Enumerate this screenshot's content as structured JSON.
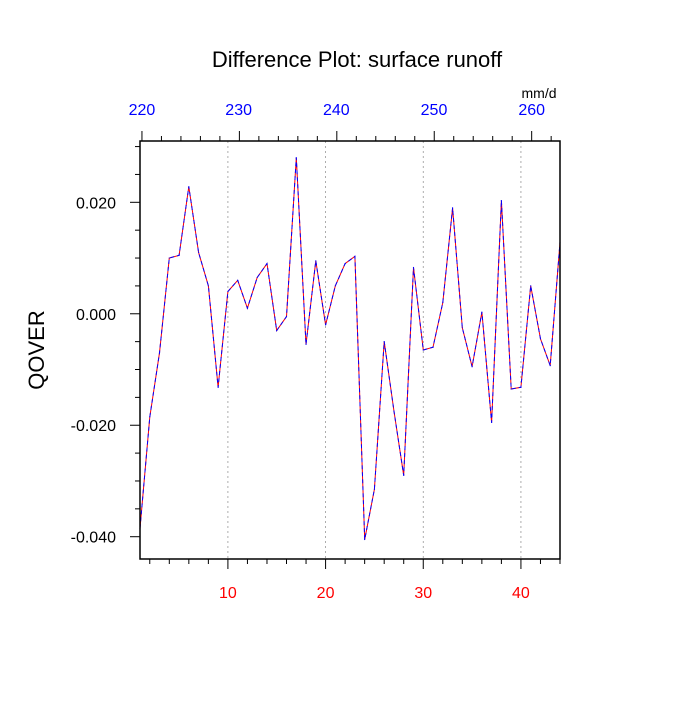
{
  "chart_data": {
    "type": "line",
    "title": "Difference Plot: surface runoff",
    "ylabel": "QOVER",
    "units_label": "mm/d",
    "xlim": [
      1,
      44
    ],
    "ylim": [
      -0.044,
      0.031
    ],
    "top_axis": {
      "ticks": [
        {
          "x": 1.2,
          "label": "220"
        },
        {
          "x": 11.1,
          "label": "230"
        },
        {
          "x": 21.1,
          "label": "240"
        },
        {
          "x": 31.1,
          "label": "250"
        },
        {
          "x": 41.1,
          "label": "260"
        }
      ],
      "color": "#0000ff"
    },
    "bottom_axis": {
      "ticks": [
        {
          "x": 10,
          "label": "10"
        },
        {
          "x": 20,
          "label": "20"
        },
        {
          "x": 30,
          "label": "30"
        },
        {
          "x": 40,
          "label": "40"
        }
      ],
      "color": "#ff0000"
    },
    "left_axis": {
      "ticks": [
        {
          "y": 0.02,
          "label": "0.020"
        },
        {
          "y": 0.0,
          "label": "0.000"
        },
        {
          "y": -0.02,
          "label": "-0.020"
        },
        {
          "y": -0.04,
          "label": "-0.040"
        }
      ]
    },
    "grid": "vertical dotted at major x ticks",
    "series": [
      {
        "style": "dashed",
        "color_a": "#ff0000",
        "color_b": "#0000ff",
        "x": [
          1,
          2,
          3,
          4,
          5,
          6,
          7,
          8,
          9,
          10,
          11,
          12,
          13,
          14,
          15,
          16,
          17,
          18,
          19,
          20,
          21,
          22,
          23,
          24,
          25,
          26,
          27,
          28,
          29,
          30,
          31,
          32,
          33,
          34,
          35,
          36,
          37,
          38,
          39,
          40,
          41,
          42,
          43,
          44
        ],
        "values": [
          -0.0385,
          -0.0185,
          -0.007,
          0.01,
          0.0105,
          0.0228,
          0.011,
          0.005,
          -0.0132,
          0.004,
          0.006,
          0.001,
          0.0065,
          0.009,
          -0.003,
          -0.0005,
          0.028,
          -0.0055,
          0.0095,
          -0.002,
          0.005,
          0.009,
          0.0103,
          -0.0405,
          -0.0315,
          -0.005,
          -0.0175,
          -0.029,
          0.0083,
          -0.0065,
          -0.006,
          0.002,
          0.019,
          -0.0025,
          -0.0095,
          0.0003,
          -0.0195,
          0.0203,
          -0.0135,
          -0.0132,
          0.005,
          -0.0045,
          -0.0093,
          0.0128
        ]
      }
    ]
  }
}
